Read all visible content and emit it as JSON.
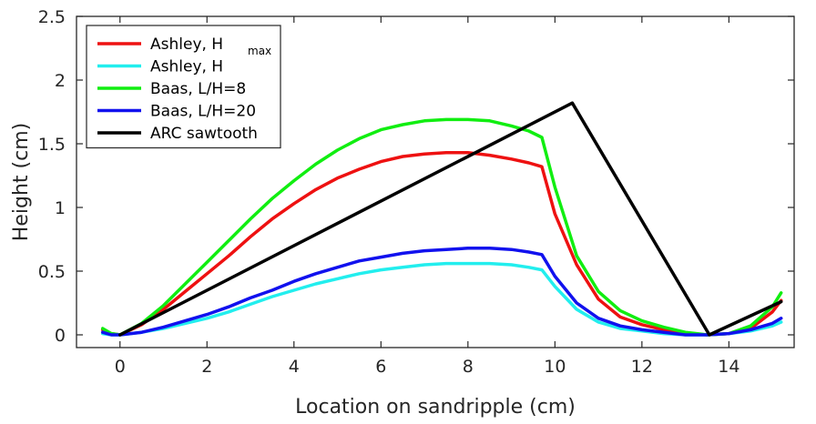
{
  "chart_data": {
    "type": "line",
    "title": "",
    "xlabel": "Location on sandripple (cm)",
    "ylabel": "Height (cm)",
    "xlim": [
      -1,
      15.5
    ],
    "ylim": [
      -0.1,
      2.5
    ],
    "xticks": [
      0,
      2,
      4,
      6,
      8,
      10,
      12,
      14
    ],
    "yticks": [
      0,
      0.5,
      1,
      1.5,
      2,
      2.5
    ],
    "xtick_labels": [
      "0",
      "2",
      "4",
      "6",
      "8",
      "10",
      "12",
      "14"
    ],
    "ytick_labels": [
      "0",
      "0.5",
      "1",
      "1.5",
      "2",
      "2.5"
    ],
    "grid": false,
    "legend_position": "top-left",
    "series": [
      {
        "name": "Ashley, H",
        "name_subscript": "max",
        "color": "#ee1111",
        "x": [
          -0.4,
          -0.2,
          0,
          0.5,
          1,
          1.5,
          2,
          2.5,
          3,
          3.5,
          4,
          4.5,
          5,
          5.5,
          6,
          6.5,
          7,
          7.5,
          8,
          8.5,
          9,
          9.4,
          9.7,
          10,
          10.5,
          11,
          11.5,
          12,
          12.5,
          13,
          13.5,
          14,
          14.5,
          15,
          15.2
        ],
        "y": [
          0.04,
          0.01,
          0,
          0.08,
          0.2,
          0.34,
          0.48,
          0.62,
          0.77,
          0.91,
          1.03,
          1.14,
          1.23,
          1.3,
          1.36,
          1.4,
          1.42,
          1.43,
          1.43,
          1.41,
          1.38,
          1.35,
          1.32,
          0.95,
          0.55,
          0.28,
          0.14,
          0.08,
          0.04,
          0.01,
          0,
          0.01,
          0.05,
          0.18,
          0.27
        ]
      },
      {
        "name": "Ashley, H",
        "color": "#22eeee",
        "x": [
          -0.4,
          -0.2,
          0,
          0.5,
          1,
          1.5,
          2,
          2.5,
          3,
          3.5,
          4,
          4.5,
          5,
          5.5,
          6,
          6.5,
          7,
          7.5,
          8,
          8.5,
          9,
          9.4,
          9.7,
          10,
          10.5,
          11,
          11.5,
          12,
          12.5,
          13,
          13.5,
          14,
          14.5,
          15,
          15.2
        ],
        "y": [
          0.01,
          0,
          0,
          0.02,
          0.05,
          0.09,
          0.13,
          0.18,
          0.24,
          0.3,
          0.35,
          0.4,
          0.44,
          0.48,
          0.51,
          0.53,
          0.55,
          0.56,
          0.56,
          0.56,
          0.55,
          0.53,
          0.51,
          0.38,
          0.2,
          0.1,
          0.05,
          0.03,
          0.01,
          0,
          0,
          0.01,
          0.03,
          0.07,
          0.1
        ]
      },
      {
        "name": "Baas, L/H=8",
        "color": "#11ee11",
        "x": [
          -0.4,
          -0.2,
          0,
          0.5,
          1,
          1.5,
          2,
          2.5,
          3,
          3.5,
          4,
          4.5,
          5,
          5.5,
          6,
          6.5,
          7,
          7.5,
          8,
          8.5,
          9,
          9.4,
          9.7,
          10,
          10.5,
          11,
          11.5,
          12,
          12.5,
          13,
          13.5,
          14,
          14.5,
          15,
          15.2
        ],
        "y": [
          0.05,
          0.01,
          0,
          0.09,
          0.23,
          0.4,
          0.57,
          0.74,
          0.91,
          1.07,
          1.21,
          1.34,
          1.45,
          1.54,
          1.61,
          1.65,
          1.68,
          1.69,
          1.69,
          1.68,
          1.64,
          1.6,
          1.55,
          1.16,
          0.62,
          0.34,
          0.19,
          0.11,
          0.06,
          0.02,
          0,
          0.01,
          0.07,
          0.22,
          0.33
        ]
      },
      {
        "name": "Baas, L/H=20",
        "color": "#1111ee",
        "x": [
          -0.4,
          -0.2,
          0,
          0.5,
          1,
          1.5,
          2,
          2.5,
          3,
          3.5,
          4,
          4.5,
          5,
          5.5,
          6,
          6.5,
          7,
          7.5,
          8,
          8.5,
          9,
          9.4,
          9.7,
          10,
          10.5,
          11,
          11.5,
          12,
          12.5,
          13,
          13.5,
          14,
          14.5,
          15,
          15.2
        ],
        "y": [
          0.02,
          0,
          0,
          0.02,
          0.06,
          0.11,
          0.16,
          0.22,
          0.29,
          0.35,
          0.42,
          0.48,
          0.53,
          0.58,
          0.61,
          0.64,
          0.66,
          0.67,
          0.68,
          0.68,
          0.67,
          0.65,
          0.63,
          0.46,
          0.25,
          0.13,
          0.07,
          0.04,
          0.02,
          0,
          0,
          0.01,
          0.04,
          0.09,
          0.13
        ]
      },
      {
        "name": "ARC sawtooth",
        "color": "#000000",
        "x": [
          0,
          10.4,
          13.55,
          15.2
        ],
        "y": [
          0,
          1.82,
          0,
          0.26
        ]
      }
    ]
  }
}
